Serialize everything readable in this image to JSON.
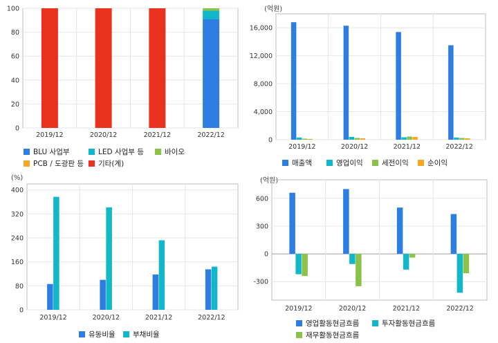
{
  "colors": {
    "blue": "#2e7de1",
    "cyan": "#12b8c9",
    "green": "#8bc34a",
    "orange": "#f5a623",
    "red": "#e8321e",
    "grid": "#e6e6e6",
    "frame": "#bdbdbd"
  },
  "chart_data": [
    {
      "type": "bar",
      "stacked": true,
      "categories": [
        "2019/12",
        "2020/12",
        "2021/12",
        "2022/12"
      ],
      "ylim": [
        0,
        100
      ],
      "yticks": [
        "0",
        "20",
        "40",
        "60",
        "80",
        "100"
      ],
      "grid": true,
      "legend_position": "bottom",
      "series": [
        {
          "name": "BLU 사업부",
          "color": "#2e7de1",
          "values": [
            0,
            0,
            0,
            91
          ]
        },
        {
          "name": "LED 사업부 등",
          "color": "#12b8c9",
          "values": [
            0,
            0,
            0,
            7
          ]
        },
        {
          "name": "바이오",
          "color": "#8bc34a",
          "values": [
            0,
            0,
            0,
            2
          ]
        },
        {
          "name": "PCB / 도광판 등",
          "color": "#f5a623",
          "values": [
            0,
            0,
            0,
            0
          ]
        },
        {
          "name": "기타(계)",
          "color": "#e8321e",
          "values": [
            100,
            100,
            100,
            0
          ]
        }
      ]
    },
    {
      "type": "bar",
      "unit": "(억원)",
      "categories": [
        "2019/12",
        "2020/12",
        "2021/12",
        "2022/12"
      ],
      "ylim": [
        0,
        18000
      ],
      "yticks": [
        "0",
        "4,000",
        "8,000",
        "12,000",
        "16,000"
      ],
      "grid": true,
      "legend_position": "bottom",
      "series": [
        {
          "name": "매출액",
          "color": "#2e7de1",
          "values": [
            16800,
            16300,
            15400,
            13500
          ]
        },
        {
          "name": "영업이익",
          "color": "#12b8c9",
          "values": [
            300,
            400,
            350,
            300
          ]
        },
        {
          "name": "세전이익",
          "color": "#8bc34a",
          "values": [
            150,
            250,
            450,
            250
          ]
        },
        {
          "name": "순이익",
          "color": "#f5a623",
          "values": [
            100,
            200,
            400,
            200
          ]
        }
      ]
    },
    {
      "type": "bar",
      "unit": "(%)",
      "categories": [
        "2019/12",
        "2020/12",
        "2021/12",
        "2022/12"
      ],
      "ylim": [
        0,
        420
      ],
      "yticks": [
        "0",
        "80",
        "160",
        "240",
        "320",
        "400"
      ],
      "grid": true,
      "legend_position": "bottom",
      "series": [
        {
          "name": "유동비율",
          "color": "#2e7de1",
          "values": [
            86,
            100,
            118,
            135
          ]
        },
        {
          "name": "부채비율",
          "color": "#12b8c9",
          "values": [
            377,
            342,
            232,
            144
          ]
        }
      ]
    },
    {
      "type": "bar",
      "unit": "(억원)",
      "categories": [
        "2019/12",
        "2020/12",
        "2021/12",
        "2022/12"
      ],
      "ylim": [
        -500,
        800
      ],
      "yticks": [
        "-300",
        "0",
        "300",
        "600"
      ],
      "grid": true,
      "legend_position": "bottom",
      "series": [
        {
          "name": "영업활동현금흐름",
          "color": "#2e7de1",
          "values": [
            660,
            700,
            500,
            430
          ]
        },
        {
          "name": "투자활동현금흐름",
          "color": "#12b8c9",
          "values": [
            -220,
            -110,
            -170,
            -420
          ]
        },
        {
          "name": "재무활동현금흐름",
          "color": "#8bc34a",
          "values": [
            -240,
            -350,
            -40,
            -210
          ]
        }
      ]
    }
  ]
}
